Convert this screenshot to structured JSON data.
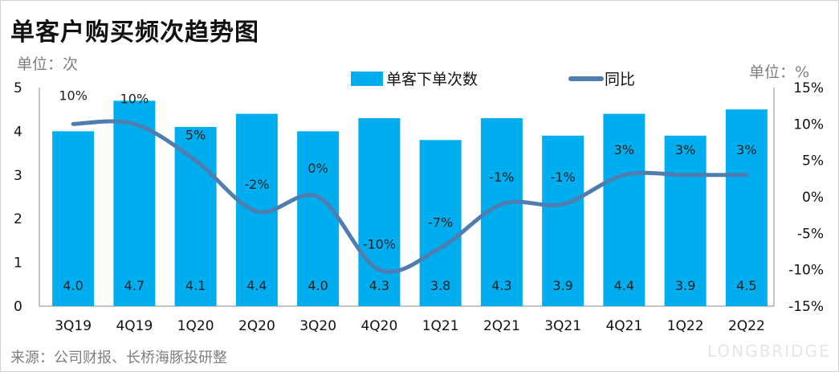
{
  "title": "单客户购买频次趋势图",
  "left_unit": "单位：次",
  "right_unit": "单位：%",
  "source": "来源：公司财报、长桥海豚投研整",
  "watermark": "LONGBRIDGE",
  "colors": {
    "bar": "#00AEEF",
    "line": "#4F7DAF"
  },
  "chart_data": {
    "type": "bar",
    "title": "单客户购买频次趋势图",
    "categories": [
      "3Q19",
      "4Q19",
      "1Q20",
      "2Q20",
      "3Q20",
      "4Q20",
      "1Q21",
      "2Q21",
      "3Q21",
      "4Q21",
      "1Q22",
      "2Q22"
    ],
    "series": [
      {
        "name": "单客下单次数",
        "type": "bar",
        "axis": "left",
        "values": [
          4.0,
          4.7,
          4.1,
          4.4,
          4.0,
          4.3,
          3.8,
          4.3,
          3.9,
          4.4,
          3.9,
          4.5
        ],
        "labels": [
          "4.0",
          "4.7",
          "4.1",
          "4.4",
          "4.0",
          "4.3",
          "3.8",
          "4.3",
          "3.9",
          "4.4",
          "3.9",
          "4.5"
        ]
      },
      {
        "name": "同比",
        "type": "line",
        "axis": "right",
        "values": [
          10,
          10,
          5,
          -2,
          0,
          -10,
          -7,
          -1,
          -1,
          3,
          3,
          3
        ],
        "labels": [
          "10%",
          "10%",
          "5%",
          "-2%",
          "0%",
          "-10%",
          "-7%",
          "-1%",
          "-1%",
          "3%",
          "3%",
          "3%"
        ]
      }
    ],
    "y_left": {
      "range": [
        0,
        5
      ],
      "ticks": [
        "0",
        "1",
        "2",
        "3",
        "4",
        "5"
      ]
    },
    "y_right": {
      "range": [
        -15,
        15
      ],
      "ticks": [
        "-15%",
        "-10%",
        "-5%",
        "0%",
        "5%",
        "10%",
        "15%"
      ]
    },
    "legend": "top-center",
    "grid": false
  }
}
